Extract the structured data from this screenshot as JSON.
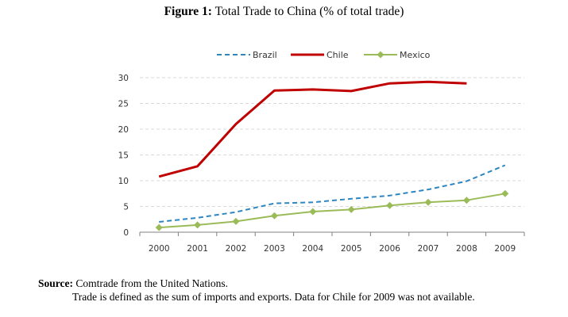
{
  "figure": {
    "label": "Figure 1:",
    "title": "Total Trade to China (% of total trade)"
  },
  "chart_data": {
    "type": "line",
    "title": "Total Trade to China (% of total trade)",
    "x": [
      "2000",
      "2001",
      "2002",
      "2003",
      "2004",
      "2005",
      "2006",
      "2007",
      "2008",
      "2009"
    ],
    "ylim": [
      0,
      30
    ],
    "yticks": [
      0,
      5,
      10,
      15,
      20,
      25,
      30
    ],
    "grid": true,
    "legend_position": "top",
    "series": [
      {
        "name": "Brazil",
        "color": "#2e86c1",
        "style": "dashed",
        "values": [
          2.0,
          2.8,
          3.9,
          5.6,
          5.8,
          6.5,
          7.1,
          8.3,
          9.9,
          13.0
        ]
      },
      {
        "name": "Chile",
        "color": "#c00000",
        "style": "solid",
        "values": [
          10.8,
          12.8,
          21.0,
          27.5,
          27.7,
          27.4,
          28.9,
          29.2,
          28.9,
          null
        ]
      },
      {
        "name": "Mexico",
        "color": "#9bbb59",
        "style": "marker",
        "values": [
          0.9,
          1.4,
          2.1,
          3.2,
          4.0,
          4.4,
          5.2,
          5.8,
          6.2,
          7.5
        ]
      }
    ]
  },
  "source": {
    "label": "Source:",
    "line1": "Comtrade from the United Nations.",
    "line2": "Trade is defined as the sum of imports and exports. Data for Chile for 2009 was not available."
  }
}
